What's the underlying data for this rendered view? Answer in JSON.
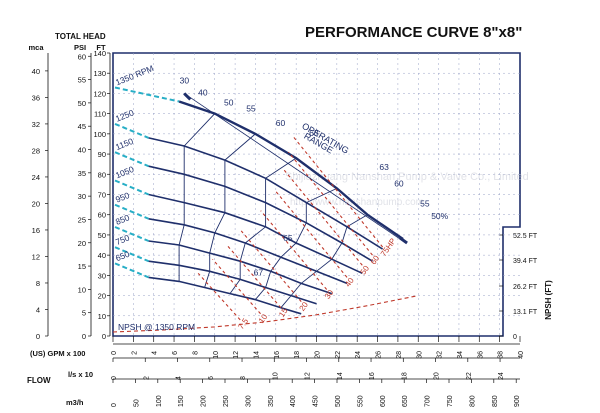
{
  "title": "PERFORMANCE CURVE 8\"x8\"",
  "watermark": [
    "Shijiazhuang Nanshan Pump & Valve Co., Limited",
    "http://www.nanshanpump.com"
  ],
  "colors": {
    "frame": "#1f2f6b",
    "curve": "#1f2f6b",
    "power": "#c0392b",
    "rpm_label": "#1f2f6b",
    "cyan": "#27aec6",
    "grid": "#9aa3c7"
  },
  "chart_data": {
    "type": "line",
    "title": "PERFORMANCE CURVE 8\"x8\"",
    "head_axis_title": "TOTAL HEAD",
    "axes": {
      "head_mca": {
        "label": "mca",
        "ticks": [
          0,
          4,
          8,
          12,
          16,
          20,
          24,
          28,
          32,
          36,
          40
        ],
        "range": [
          0,
          42.7
        ]
      },
      "head_psi": {
        "label": "PSI",
        "ticks": [
          0,
          5,
          10,
          15,
          20,
          25,
          30,
          35,
          40,
          45,
          50,
          55,
          60
        ],
        "range": [
          0,
          60.7
        ]
      },
      "head_ft": {
        "label": "FT",
        "ticks": [
          0,
          10,
          20,
          30,
          40,
          50,
          60,
          70,
          80,
          90,
          100,
          110,
          120,
          130,
          140
        ],
        "range": [
          0,
          140
        ]
      },
      "npsh_ft": {
        "label": "NPSH (FT)",
        "ticks": [
          "0",
          "13.1 FT",
          "26.2 FT",
          "39.4 FT",
          "52.5 FT"
        ]
      },
      "flow_gpm": {
        "label": "(US) GPM x 100",
        "ticks": [
          0,
          2,
          4,
          6,
          8,
          10,
          12,
          14,
          16,
          18,
          20,
          22,
          24,
          26,
          28,
          30,
          32,
          34,
          36,
          38,
          40
        ],
        "range": [
          0,
          40
        ]
      },
      "flow_ls": {
        "label": "l/s  x 10",
        "ticks": [
          0,
          2,
          4,
          6,
          8,
          10,
          12,
          14,
          16,
          18,
          20,
          22,
          24
        ]
      },
      "flow_m3h": {
        "label": "m3/h",
        "ticks": [
          0,
          50,
          100,
          150,
          200,
          250,
          300,
          350,
          400,
          450,
          500,
          550,
          600,
          650,
          700,
          750,
          800,
          850,
          900
        ]
      }
    },
    "flow_axis_title": "FLOW",
    "series": [
      {
        "name": "1350 RPM",
        "x": [
          6.5,
          10,
          14,
          18,
          22,
          25,
          28.5
        ],
        "y": [
          116,
          110,
          100,
          88,
          73,
          60,
          48
        ]
      },
      {
        "name": "1250",
        "x": [
          3.5,
          7,
          11,
          15,
          19,
          23,
          26.5
        ],
        "y": [
          98,
          94,
          87,
          78,
          66,
          54,
          43
        ]
      },
      {
        "name": "1150",
        "x": [
          3.5,
          7,
          11,
          15,
          19,
          22.5,
          25.5
        ],
        "y": [
          84,
          80,
          74,
          66,
          56,
          46,
          37
        ]
      },
      {
        "name": "1050",
        "x": [
          3.5,
          7,
          11,
          15,
          18,
          21.5,
          24.5
        ],
        "y": [
          70,
          66,
          61,
          54,
          46,
          38,
          31
        ]
      },
      {
        "name": "950",
        "x": [
          3.5,
          7,
          10,
          13,
          16.5,
          20,
          23
        ],
        "y": [
          58,
          55,
          51,
          46,
          39,
          32,
          26
        ]
      },
      {
        "name": "850",
        "x": [
          3.5,
          6.5,
          9.5,
          12.5,
          15.5,
          18.5,
          21.5
        ],
        "y": [
          47,
          45,
          41,
          37,
          32,
          26,
          21
        ]
      },
      {
        "name": "750",
        "x": [
          3.5,
          6.5,
          9.5,
          12.5,
          15,
          17.5,
          20
        ],
        "y": [
          37,
          35,
          32,
          28,
          24,
          20,
          16
        ]
      },
      {
        "name": "650",
        "x": [
          3.5,
          6.5,
          9,
          11.5,
          14,
          16.5,
          18.5
        ],
        "y": [
          29,
          27,
          24,
          21,
          18,
          14,
          11
        ]
      }
    ],
    "efficiency_labels": [
      "30",
      "40",
      "50",
      "55",
      "60",
      "63",
      "65",
      "67",
      "63",
      "60",
      "55",
      "50%"
    ],
    "power_labels": [
      "75HP",
      "60",
      "50",
      "40",
      "30",
      "20",
      "15",
      "10",
      "7.5"
    ],
    "npsh_curve": {
      "name": "NPSH @ 1350 RPM",
      "x": [
        0,
        5,
        10,
        15,
        20,
        25,
        30
      ],
      "y_ft": [
        2,
        3,
        4.5,
        7,
        10.5,
        15,
        20
      ]
    },
    "operating_range_label": [
      "OPERATING",
      "RANGE"
    ]
  }
}
